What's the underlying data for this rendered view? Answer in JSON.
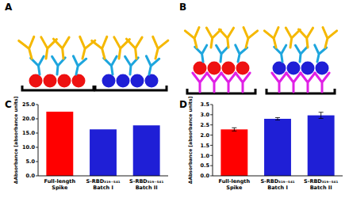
{
  "panel_labels": [
    "A",
    "B",
    "C",
    "D"
  ],
  "chart_data": [
    {
      "type": "bar",
      "y_label": "ΔAbsorbance [absorbance units]",
      "categories": [
        "Full-length Spike",
        "S-RBD₃₁₉₋₅₄₁ Batch I",
        "S-RBD₃₁₉₋₅₄₁ Batch II"
      ],
      "values": [
        22.5,
        16.3,
        17.7
      ],
      "colors": [
        "#ff0000",
        "#1f1fd6",
        "#1f1fd6"
      ],
      "ylim": [
        0,
        25
      ],
      "yticks": [
        {
          "value": 0,
          "label": "0.0"
        },
        {
          "value": 5,
          "label": "5.0"
        },
        {
          "value": 10,
          "label": "10.0"
        },
        {
          "value": 15,
          "label": "15.0"
        },
        {
          "value": 20,
          "label": "20.0"
        },
        {
          "value": 25,
          "label": "25.0"
        }
      ],
      "grid": false
    },
    {
      "type": "bar",
      "y_label": "ΔAbsorbance [absorbance units]",
      "categories": [
        "Full-length Spike",
        "S-RBD₃₁₉₋₅₄₁ Batch I",
        "S-RBD₃₁₉₋₅₄₁ Batch II"
      ],
      "values": [
        2.28,
        2.8,
        2.97
      ],
      "errors": [
        0.08,
        0.06,
        0.15
      ],
      "colors": [
        "#ff0000",
        "#1f1fd6",
        "#1f1fd6"
      ],
      "ylim": [
        0,
        3.5
      ],
      "yticks": [
        {
          "value": 0,
          "label": "0.0"
        },
        0.5,
        {
          "value": 1,
          "label": "1.0"
        },
        1.5,
        {
          "value": 2,
          "label": "2.0"
        },
        2.5,
        {
          "value": 3,
          "label": "3.0"
        },
        3.5
      ],
      "grid": false
    }
  ]
}
